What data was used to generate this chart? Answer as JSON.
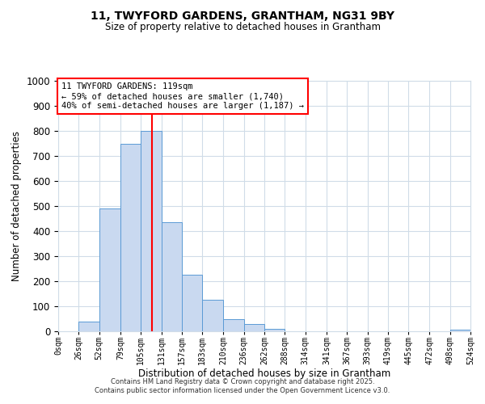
{
  "title": "11, TWYFORD GARDENS, GRANTHAM, NG31 9BY",
  "subtitle": "Size of property relative to detached houses in Grantham",
  "xlabel": "Distribution of detached houses by size in Grantham",
  "ylabel": "Number of detached properties",
  "bar_edges": [
    0,
    26,
    52,
    79,
    105,
    131,
    157,
    183,
    210,
    236,
    262,
    288,
    314,
    341,
    367,
    393,
    419,
    445,
    472,
    498,
    524
  ],
  "bar_heights": [
    0,
    40,
    490,
    750,
    800,
    435,
    225,
    125,
    50,
    28,
    10,
    0,
    0,
    0,
    0,
    0,
    0,
    0,
    0,
    5
  ],
  "bar_color": "#c9d9f0",
  "bar_edge_color": "#5b9bd5",
  "vline_x": 119,
  "vline_color": "red",
  "ylim": [
    0,
    1000
  ],
  "tick_labels": [
    "0sqm",
    "26sqm",
    "52sqm",
    "79sqm",
    "105sqm",
    "131sqm",
    "157sqm",
    "183sqm",
    "210sqm",
    "236sqm",
    "262sqm",
    "288sqm",
    "314sqm",
    "341sqm",
    "367sqm",
    "393sqm",
    "419sqm",
    "445sqm",
    "472sqm",
    "498sqm",
    "524sqm"
  ],
  "annotation_title": "11 TWYFORD GARDENS: 119sqm",
  "annotation_line1": "← 59% of detached houses are smaller (1,740)",
  "annotation_line2": "40% of semi-detached houses are larger (1,187) →",
  "annotation_box_color": "red",
  "footer1": "Contains HM Land Registry data © Crown copyright and database right 2025.",
  "footer2": "Contains public sector information licensed under the Open Government Licence v3.0.",
  "bg_color": "#ffffff",
  "grid_color": "#d0dce8"
}
